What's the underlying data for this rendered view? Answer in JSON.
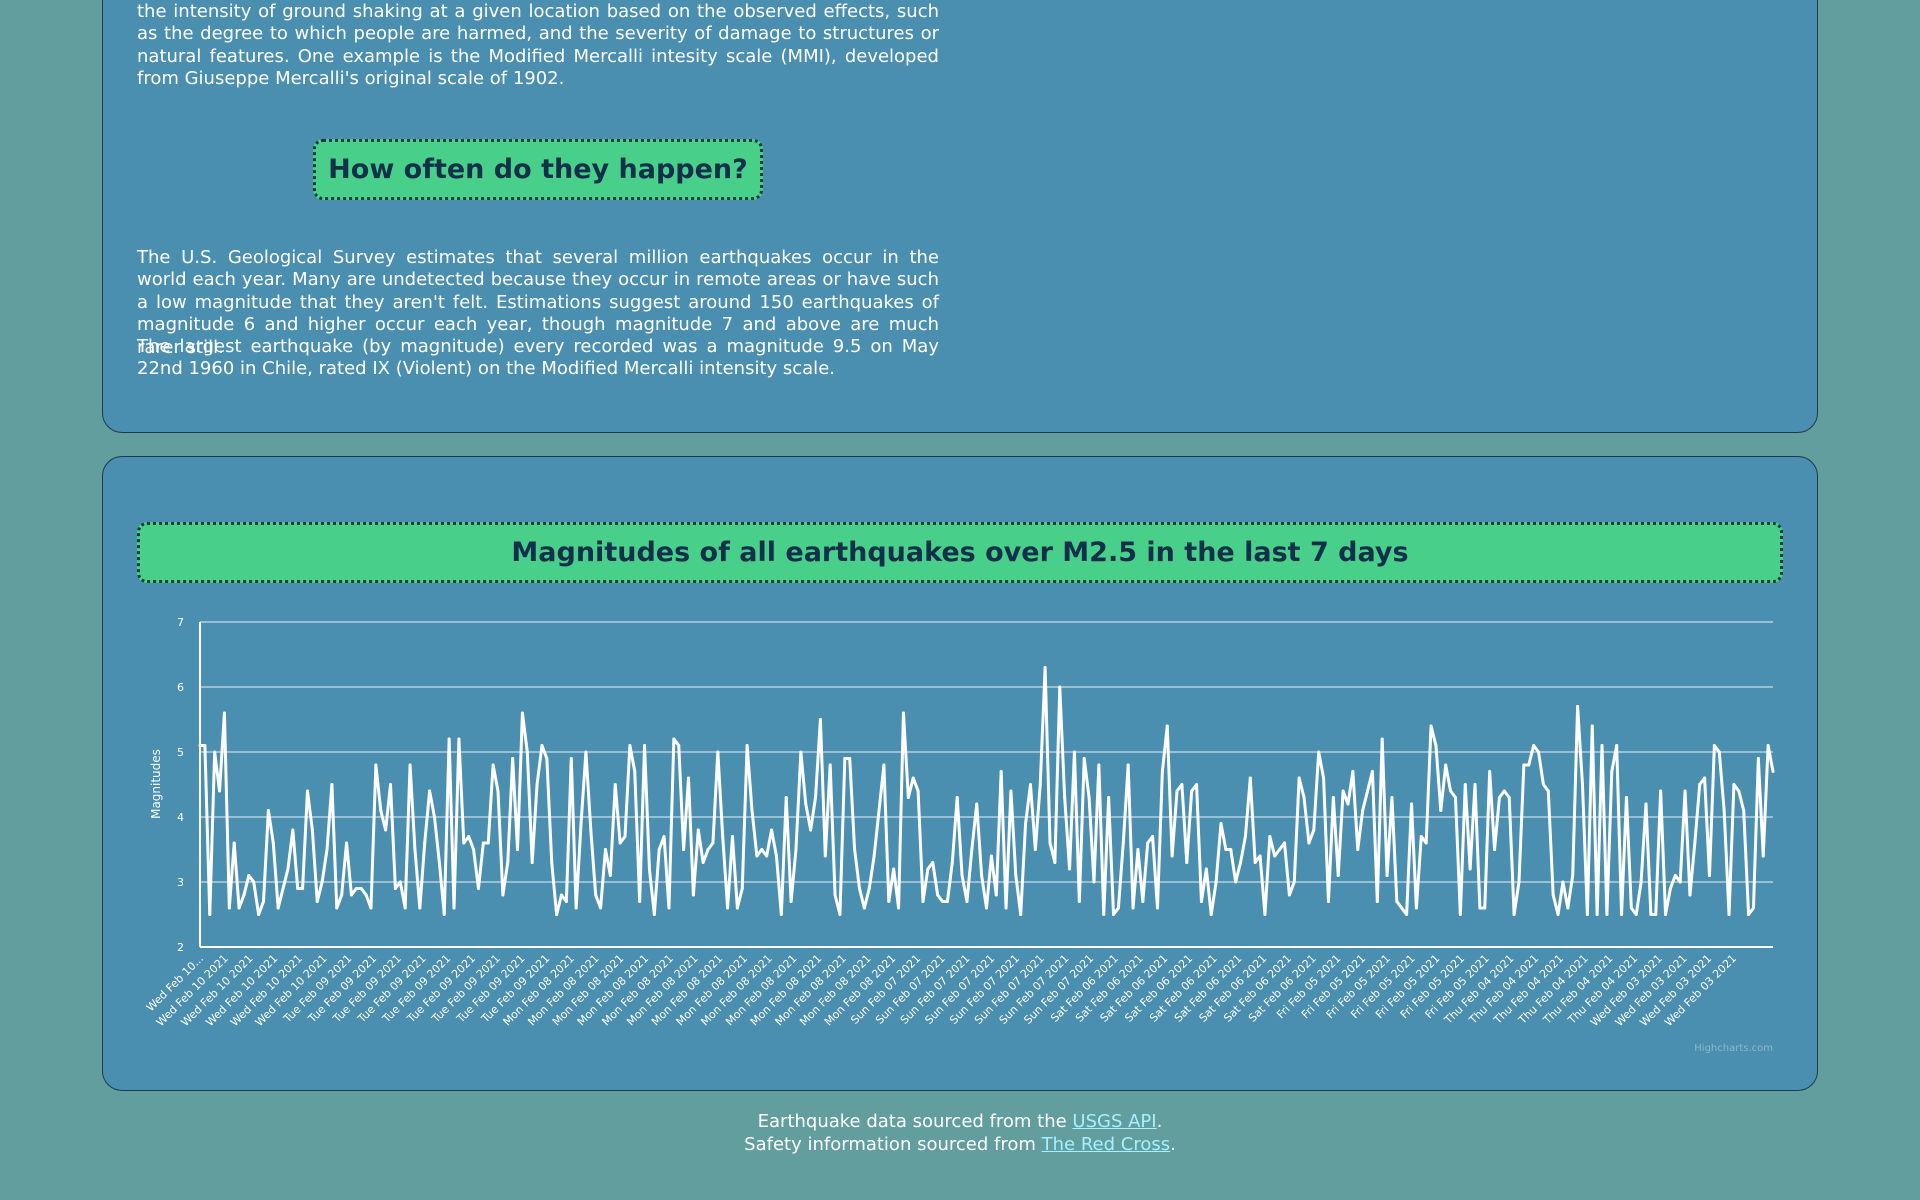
{
  "intro": {
    "paragraph": "the intensity of ground shaking at a given location based on the observed effects, such as the degree to which people are harmed, and the severity of damage to structures or natural features. One example is the Modified Mercalli intesity scale (MMI), developed from Giuseppe Mercalli's original scale of 1902."
  },
  "frequency": {
    "heading": "How often do they happen?",
    "paragraph1": "The U.S. Geological Survey estimates that several million earthquakes occur in the world each year. Many are undetected because they occur in remote areas or have such a low magnitude that they aren't felt. Estimations suggest around 150 earthquakes of magnitude 6 and higher occur each year, though magnitude 7 and above are much rarer still.",
    "paragraph2": "The largest earthquake (by magnitude) every recorded was a magnitude 9.5 on May 22nd 1960 in Chile, rated IX (Violent) on the Modified Mercalli intensity scale."
  },
  "chart_section": {
    "heading": "Magnitudes of all earthquakes over M2.5 in the last 7 days",
    "credits": "Highcharts.com"
  },
  "footer": {
    "line1_prefix": "Earthquake data sourced from the ",
    "line1_link": "USGS API",
    "line1_suffix": ".",
    "line2_prefix": "Safety information sourced from ",
    "line2_link": "The Red Cross",
    "line2_suffix": "."
  },
  "colors": {
    "page_background": "#629e9e",
    "card_background": "#4a8eb0",
    "heading_background": "#48cf89",
    "line": "#ffffff",
    "link": "#a6f0ff"
  },
  "chart_data": {
    "type": "line",
    "ylabel": "Magnitudes",
    "xlabel": "",
    "title": "",
    "ylim": [
      2,
      7
    ],
    "yticks": [
      2,
      3,
      4,
      5,
      6,
      7
    ],
    "grid": true,
    "legend": "none",
    "tick_labels": [
      "Wed Feb 10...",
      "Wed Feb 10 2021",
      "Wed Feb 10 2021",
      "Wed Feb 10 2021",
      "Wed Feb 10 2021",
      "Wed Feb 10 2021",
      "Tue Feb 09 2021",
      "Tue Feb 09 2021",
      "Tue Feb 09 2021",
      "Tue Feb 09 2021",
      "Tue Feb 09 2021",
      "Tue Feb 09 2021",
      "Tue Feb 09 2021",
      "Tue Feb 09 2021",
      "Tue Feb 09 2021",
      "Mon Feb 08 2021",
      "Mon Feb 08 2021",
      "Mon Feb 08 2021",
      "Mon Feb 08 2021",
      "Mon Feb 08 2021",
      "Mon Feb 08 2021",
      "Mon Feb 08 2021",
      "Mon Feb 08 2021",
      "Mon Feb 08 2021",
      "Mon Feb 08 2021",
      "Mon Feb 08 2021",
      "Mon Feb 08 2021",
      "Mon Feb 08 2021",
      "Mon Feb 08 2021",
      "Sun Feb 07 2021",
      "Sun Feb 07 2021",
      "Sun Feb 07 2021",
      "Sun Feb 07 2021",
      "Sun Feb 07 2021",
      "Sun Feb 07 2021",
      "Sun Feb 07 2021",
      "Sun Feb 07 2021",
      "Sat Feb 06 2021",
      "Sat Feb 06 2021",
      "Sat Feb 06 2021",
      "Sat Feb 06 2021",
      "Sat Feb 06 2021",
      "Sat Feb 06 2021",
      "Sat Feb 06 2021",
      "Sat Feb 06 2021",
      "Sat Feb 06 2021",
      "Fri Feb 05 2021",
      "Fri Feb 05 2021",
      "Fri Feb 05 2021",
      "Fri Feb 05 2021",
      "Fri Feb 05 2021",
      "Fri Feb 05 2021",
      "Fri Feb 05 2021",
      "Thu Feb 04 2021",
      "Thu Feb 04 2021",
      "Thu Feb 04 2021",
      "Thu Feb 04 2021",
      "Thu Feb 04 2021",
      "Thu Feb 04 2021",
      "Wed Feb 03 2021",
      "Wed Feb 03 2021",
      "Wed Feb 03 2021",
      "Wed Feb 03 2021"
    ],
    "series": [
      {
        "values": [
          5.1,
          5.1,
          2.5,
          5.0,
          4.4,
          5.6,
          2.6,
          3.6,
          2.6,
          2.8,
          3.1,
          3.0,
          2.5,
          2.7,
          4.1,
          3.6,
          2.6,
          2.9,
          3.2,
          3.8,
          2.9,
          2.9,
          4.4,
          3.8,
          2.7,
          3.0,
          3.5,
          4.5,
          2.6,
          2.8,
          3.6,
          2.8,
          2.9,
          2.9,
          2.8,
          2.6,
          4.8,
          4.1,
          3.8,
          4.5,
          2.9,
          3.0,
          2.6,
          4.8,
          3.5,
          2.6,
          3.6,
          4.4,
          4.0,
          3.3,
          2.5,
          5.2,
          2.6,
          5.2,
          3.6,
          3.7,
          3.5,
          2.9,
          3.6,
          3.6,
          4.8,
          4.4,
          2.8,
          3.3,
          4.9,
          3.5,
          5.6,
          5.0,
          3.3,
          4.5,
          5.1,
          4.9,
          3.3,
          2.5,
          2.8,
          2.7,
          4.9,
          2.6,
          3.9,
          5.0,
          3.8,
          2.8,
          2.6,
          3.5,
          3.1,
          4.5,
          3.6,
          3.7,
          5.1,
          4.7,
          2.7,
          5.1,
          3.2,
          2.5,
          3.5,
          3.7,
          2.6,
          5.2,
          5.1,
          3.5,
          4.6,
          2.8,
          3.8,
          3.3,
          3.5,
          3.6,
          5.0,
          3.7,
          2.6,
          3.7,
          2.6,
          2.9,
          5.1,
          4.1,
          3.4,
          3.5,
          3.4,
          3.8,
          3.4,
          2.5,
          4.3,
          2.7,
          3.5,
          5.0,
          4.2,
          3.8,
          4.3,
          5.5,
          3.4,
          4.8,
          2.8,
          2.5,
          4.9,
          4.9,
          3.5,
          2.9,
          2.6,
          2.9,
          3.4,
          4.1,
          4.8,
          2.7,
          3.2,
          2.6,
          5.6,
          4.3,
          4.6,
          4.4,
          2.7,
          3.2,
          3.3,
          2.8,
          2.7,
          2.7,
          3.3,
          4.3,
          3.1,
          2.7,
          3.5,
          4.2,
          3.1,
          2.6,
          3.4,
          2.8,
          4.7,
          2.6,
          4.4,
          3.1,
          2.5,
          3.9,
          4.5,
          3.5,
          4.5,
          6.3,
          3.6,
          3.3,
          6.0,
          4.3,
          3.2,
          5.0,
          2.7,
          4.9,
          4.3,
          3.0,
          4.8,
          2.5,
          4.3,
          2.5,
          2.6,
          3.6,
          4.8,
          2.6,
          3.5,
          2.7,
          3.6,
          3.7,
          2.6,
          4.7,
          5.4,
          3.4,
          4.4,
          4.5,
          3.3,
          4.4,
          4.5,
          2.7,
          3.2,
          2.5,
          3.0,
          3.9,
          3.5,
          3.5,
          3.0,
          3.3,
          3.7,
          4.6,
          3.3,
          3.4,
          2.5,
          3.7,
          3.4,
          3.5,
          3.6,
          2.8,
          3.0,
          4.6,
          4.3,
          3.6,
          3.8,
          5.0,
          4.6,
          2.7,
          4.3,
          3.1,
          4.4,
          4.2,
          4.7,
          3.5,
          4.1,
          4.4,
          4.7,
          2.7,
          5.2,
          3.1,
          4.3,
          2.7,
          2.6,
          2.5,
          4.2,
          2.6,
          3.7,
          3.6,
          5.4,
          5.1,
          4.1,
          4.8,
          4.4,
          4.3,
          2.5,
          4.5,
          3.2,
          4.5,
          2.6,
          2.6,
          4.7,
          3.5,
          4.3,
          4.4,
          4.3,
          2.5,
          3.0,
          4.8,
          4.8,
          5.1,
          5.0,
          4.5,
          4.4,
          2.8,
          2.5,
          3.0,
          2.6,
          3.1,
          5.7,
          4.5,
          2.5,
          5.4,
          2.5,
          5.1,
          2.5,
          4.7,
          5.1,
          2.5,
          4.3,
          2.6,
          2.5,
          3.0,
          4.2,
          2.5,
          2.5,
          4.4,
          2.5,
          2.9,
          3.1,
          3.0,
          4.4,
          2.8,
          3.6,
          4.5,
          4.6,
          3.1,
          5.1,
          5.0,
          4.1,
          2.5,
          4.5,
          4.4,
          4.1,
          2.5,
          2.6,
          4.9,
          3.4,
          5.1,
          4.7
        ]
      }
    ]
  }
}
